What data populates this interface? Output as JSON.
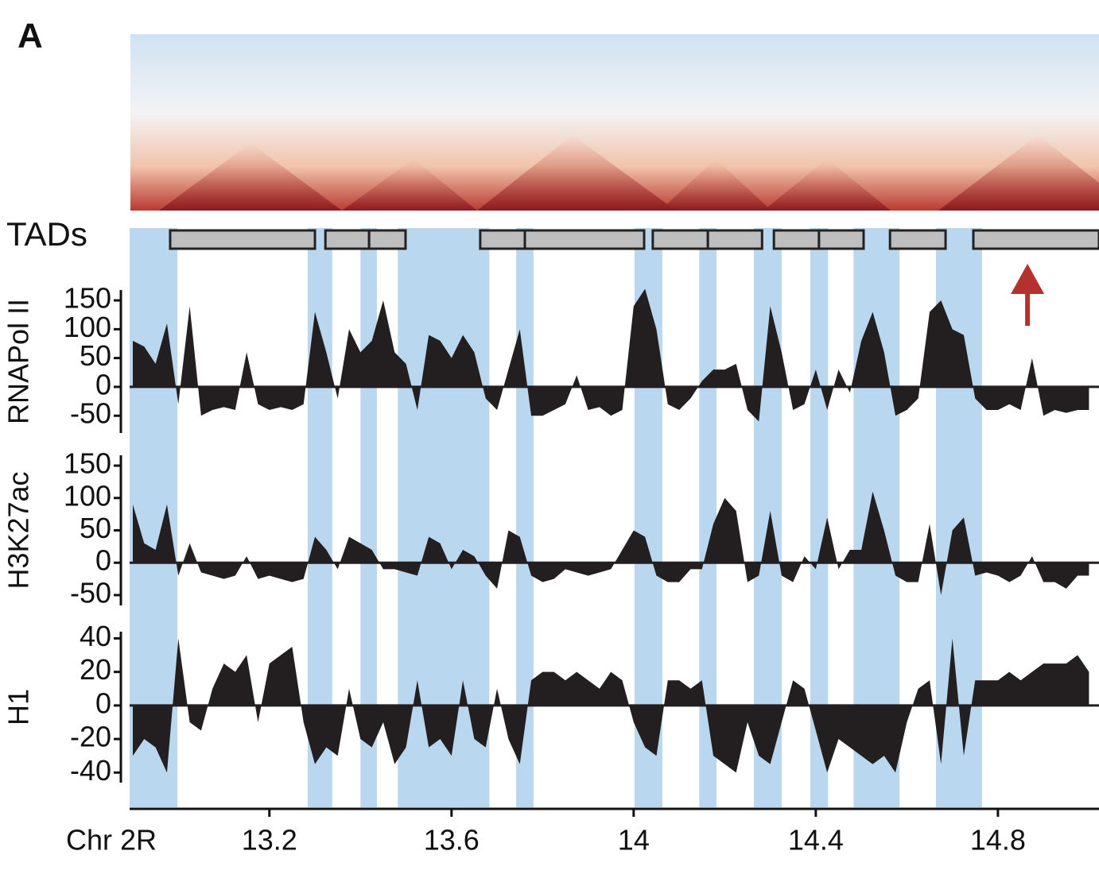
{
  "panel_label": "A",
  "chart_data": {
    "type": "area",
    "x_label": "Chr 2R",
    "xlim": [
      12.893,
      15.022
    ],
    "xticks": [
      13.2,
      13.6,
      14,
      14.4,
      14.8
    ],
    "tads_label": "TADs",
    "tads": [
      [
        12.982,
        13.3
      ],
      [
        13.323,
        13.419
      ],
      [
        13.419,
        13.499
      ],
      [
        13.663,
        13.761
      ],
      [
        13.761,
        14.023
      ],
      [
        14.042,
        14.163
      ],
      [
        14.163,
        14.282
      ],
      [
        14.308,
        14.407
      ],
      [
        14.407,
        14.505
      ],
      [
        14.563,
        14.685
      ],
      [
        14.746,
        15.022
      ]
    ],
    "tad_color": "#bebebe",
    "boundaries": [
      [
        12.893,
        12.998
      ],
      [
        13.284,
        13.338
      ],
      [
        13.4,
        13.436
      ],
      [
        13.482,
        13.683
      ],
      [
        13.742,
        13.78
      ],
      [
        14.002,
        14.063
      ],
      [
        14.144,
        14.182
      ],
      [
        14.264,
        14.325
      ],
      [
        14.388,
        14.427
      ],
      [
        14.483,
        14.584
      ],
      [
        14.664,
        14.765
      ]
    ],
    "boundary_color": "#b9d7ef",
    "arrow": {
      "x": 14.865,
      "color": "#b5312f"
    },
    "x": [
      12.9,
      12.925,
      12.95,
      12.975,
      13.0,
      13.025,
      13.05,
      13.075,
      13.1,
      13.125,
      13.15,
      13.175,
      13.2,
      13.225,
      13.25,
      13.275,
      13.3,
      13.325,
      13.35,
      13.375,
      13.4,
      13.425,
      13.45,
      13.475,
      13.5,
      13.525,
      13.55,
      13.575,
      13.6,
      13.625,
      13.65,
      13.675,
      13.7,
      13.725,
      13.75,
      13.775,
      13.8,
      13.825,
      13.85,
      13.875,
      13.9,
      13.925,
      13.95,
      13.975,
      14.0,
      14.025,
      14.05,
      14.075,
      14.1,
      14.125,
      14.15,
      14.175,
      14.2,
      14.225,
      14.25,
      14.275,
      14.3,
      14.325,
      14.35,
      14.375,
      14.4,
      14.425,
      14.45,
      14.475,
      14.5,
      14.525,
      14.55,
      14.575,
      14.6,
      14.625,
      14.65,
      14.675,
      14.7,
      14.725,
      14.75,
      14.775,
      14.8,
      14.825,
      14.85,
      14.875,
      14.9,
      14.925,
      14.95,
      14.975,
      15.0
    ],
    "series": [
      {
        "name": "RNAPol II",
        "color": "#231f20",
        "ylim": [
          -80,
          168
        ],
        "yticks": [
          -50,
          0,
          50,
          100,
          150
        ],
        "values": [
          80,
          70,
          40,
          110,
          -30,
          140,
          -50,
          -40,
          -35,
          -40,
          60,
          -30,
          -40,
          -35,
          -40,
          -30,
          130,
          60,
          -20,
          100,
          60,
          80,
          150,
          60,
          40,
          -40,
          90,
          80,
          50,
          90,
          60,
          -20,
          -40,
          30,
          100,
          -50,
          -50,
          -40,
          -30,
          20,
          -40,
          -35,
          -50,
          -40,
          140,
          170,
          100,
          -30,
          -40,
          -20,
          10,
          30,
          30,
          40,
          -40,
          -60,
          140,
          60,
          -40,
          -30,
          30,
          -40,
          30,
          -10,
          80,
          130,
          60,
          -50,
          -40,
          -20,
          130,
          150,
          100,
          90,
          -20,
          -40,
          -40,
          -30,
          -40,
          50,
          -50,
          -40,
          -45,
          -40,
          -40
        ]
      },
      {
        "name": "H3K27ac",
        "color": "#231f20",
        "ylim": [
          -66,
          166
        ],
        "yticks": [
          -50,
          0,
          50,
          100,
          150
        ],
        "values": [
          90,
          30,
          20,
          90,
          -20,
          30,
          -15,
          -20,
          -25,
          -20,
          10,
          -25,
          -20,
          -25,
          -30,
          -25,
          40,
          20,
          -10,
          40,
          30,
          20,
          -10,
          -10,
          -15,
          -20,
          40,
          30,
          -10,
          20,
          10,
          -20,
          -40,
          50,
          40,
          -20,
          -30,
          -25,
          -10,
          -15,
          -20,
          -15,
          -10,
          20,
          50,
          40,
          -20,
          -30,
          -30,
          -10,
          -10,
          60,
          100,
          80,
          -30,
          -20,
          80,
          -20,
          -30,
          10,
          -10,
          70,
          -10,
          20,
          20,
          110,
          50,
          -20,
          -30,
          -30,
          60,
          -50,
          50,
          70,
          -20,
          -15,
          -20,
          -30,
          -20,
          10,
          -30,
          -30,
          -40,
          -20,
          -20
        ]
      },
      {
        "name": "H1",
        "color": "#231f20",
        "ylim": [
          -46,
          44
        ],
        "yticks": [
          -40,
          -20,
          0,
          20,
          40
        ],
        "values": [
          -30,
          -20,
          -25,
          -40,
          40,
          -10,
          -15,
          10,
          25,
          20,
          30,
          -10,
          25,
          30,
          35,
          -10,
          -35,
          -25,
          -30,
          10,
          -20,
          -25,
          -10,
          -35,
          -25,
          15,
          -25,
          -20,
          -30,
          15,
          -20,
          -25,
          10,
          -20,
          -35,
          15,
          20,
          20,
          15,
          20,
          15,
          10,
          20,
          15,
          -10,
          -25,
          -30,
          15,
          15,
          10,
          15,
          -30,
          -35,
          -40,
          -10,
          -30,
          -35,
          -10,
          15,
          10,
          -15,
          -40,
          -20,
          -25,
          -30,
          -35,
          -30,
          -40,
          -10,
          10,
          15,
          -35,
          40,
          -30,
          15,
          15,
          15,
          20,
          15,
          20,
          25,
          25,
          25,
          30,
          20
        ]
      }
    ]
  }
}
